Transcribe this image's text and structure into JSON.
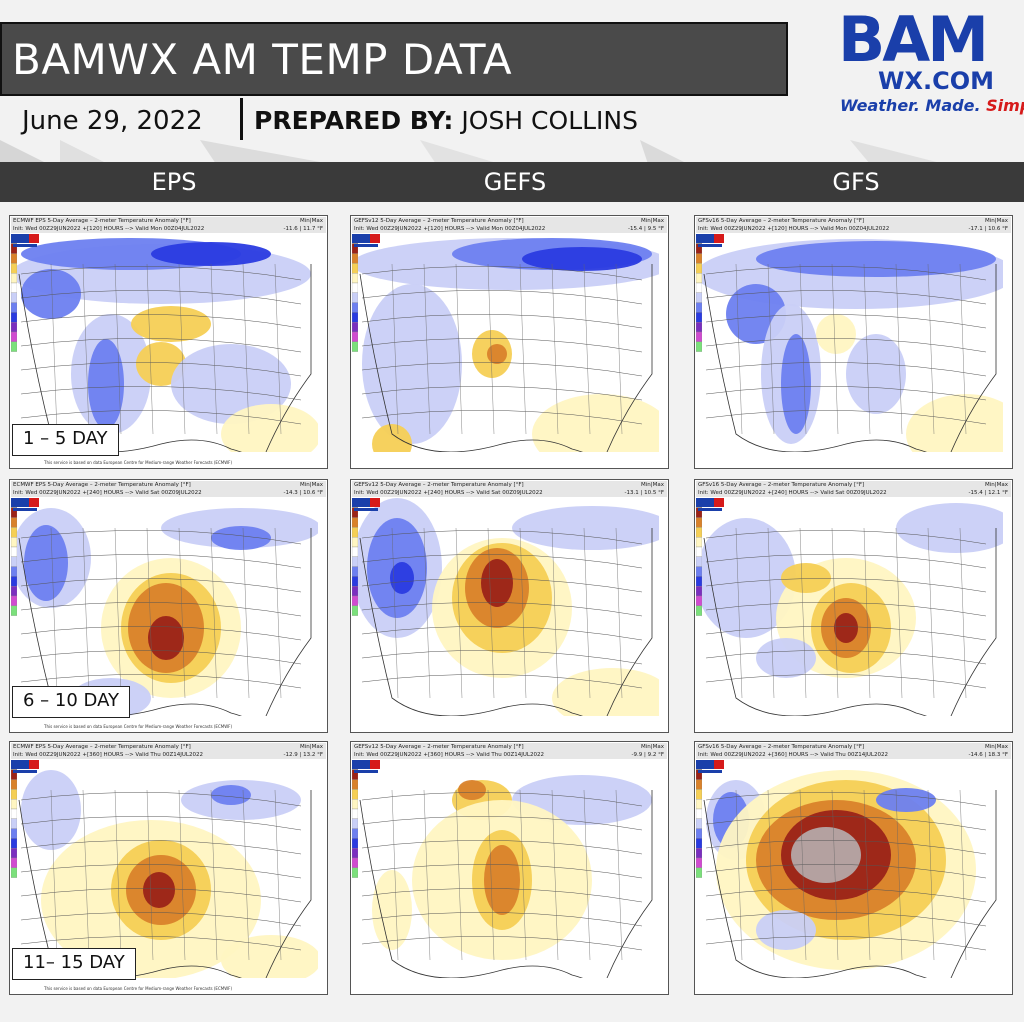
{
  "header": {
    "title": "BAMWX AM TEMP DATA",
    "date": "June 29, 2022",
    "prepared_label": "PREPARED BY:",
    "prepared_name": "JOSH COLLINS"
  },
  "logo": {
    "bam": "BAM",
    "wx": "WX.COM",
    "tag_part1": "Weather. Made. ",
    "tag_part2": "Simple."
  },
  "columns": [
    "EPS",
    "GEFS",
    "GFS"
  ],
  "day_labels": [
    "1 – 5 DAY",
    "6 – 10 DAY",
    "11– 15 DAY"
  ],
  "colors": {
    "title_bg": "#4a4a4a",
    "strip_bg": "#3a3a3a",
    "cold_dark": "#2a3be0",
    "cold": "#6d7ff0",
    "cold_light": "#c9cff7",
    "warm_light": "#fff6c2",
    "warm": "#f5cf55",
    "hot": "#d9822b",
    "very_hot": "#9b2318"
  },
  "panels": [
    {
      "row": 0,
      "col": 0,
      "title1": "ECMWF EPS 5-Day Average – 2-meter Temperature Anomaly [°F]",
      "title2": "Init: Wed 00Z29JUN2022 +[120] HOURS --> Valid Mon 00Z04JUL2022",
      "minmax": "-11.6 | 11.7 °F",
      "source": "This service is based on data European Centre for Medium-range Weather Forecasts (ECMWF)"
    },
    {
      "row": 0,
      "col": 1,
      "title1": "GEFSv12 5-Day Average – 2-meter Temperature Anomaly [°F]",
      "title2": "Init: Wed 00Z29JUN2022 +[120] HOURS --> Valid Mon 00Z04JUL2022",
      "minmax": "-15.4 | 9.5 °F",
      "source": ""
    },
    {
      "row": 0,
      "col": 2,
      "title1": "GFSv16 5-Day Average – 2-meter Temperature Anomaly [°F]",
      "title2": "Init: Wed 00Z29JUN2022 +[120] HOURS --> Valid Mon 00Z04JUL2022",
      "minmax": "-17.1 | 10.6 °F",
      "source": ""
    },
    {
      "row": 1,
      "col": 0,
      "title1": "ECMWF EPS 5-Day Average – 2-meter Temperature Anomaly [°F]",
      "title2": "Init: Wed 00Z29JUN2022 +[240] HOURS --> Valid Sat 00Z09JUL2022",
      "minmax": "-14.3 | 10.6 °F",
      "source": "This service is based on data European Centre for Medium-range Weather Forecasts (ECMWF)"
    },
    {
      "row": 1,
      "col": 1,
      "title1": "GEFSv12 5-Day Average – 2-meter Temperature Anomaly [°F]",
      "title2": "Init: Wed 00Z29JUN2022 +[240] HOURS --> Valid Sat 00Z09JUL2022",
      "minmax": "-13.1 | 10.5 °F",
      "source": ""
    },
    {
      "row": 1,
      "col": 2,
      "title1": "GFSv16 5-Day Average – 2-meter Temperature Anomaly [°F]",
      "title2": "Init: Wed 00Z29JUN2022 +[240] HOURS --> Valid Sat 00Z09JUL2022",
      "minmax": "-15.4 | 12.1 °F",
      "source": ""
    },
    {
      "row": 2,
      "col": 0,
      "title1": "ECMWF EPS 5-Day Average – 2-meter Temperature Anomaly [°F]",
      "title2": "Init: Wed 00Z29JUN2022 +[360] HOURS --> Valid Thu 00Z14JUL2022",
      "minmax": "-12.9 | 13.2 °F",
      "source": "This service is based on data European Centre for Medium-range Weather Forecasts (ECMWF)"
    },
    {
      "row": 2,
      "col": 1,
      "title1": "GEFSv12 5-Day Average – 2-meter Temperature Anomaly [°F]",
      "title2": "Init: Wed 00Z29JUN2022 +[360] HOURS --> Valid Thu 00Z14JUL2022",
      "minmax": "-9.9 | 9.2 °F",
      "source": ""
    },
    {
      "row": 2,
      "col": 2,
      "title1": "GFSv16 5-Day Average – 2-meter Temperature Anomaly [°F]",
      "title2": "Init: Wed 00Z29JUN2022 +[360] HOURS --> Valid Thu 00Z14JUL2022",
      "minmax": "-14.6 | 18.3 °F",
      "source": ""
    }
  ]
}
